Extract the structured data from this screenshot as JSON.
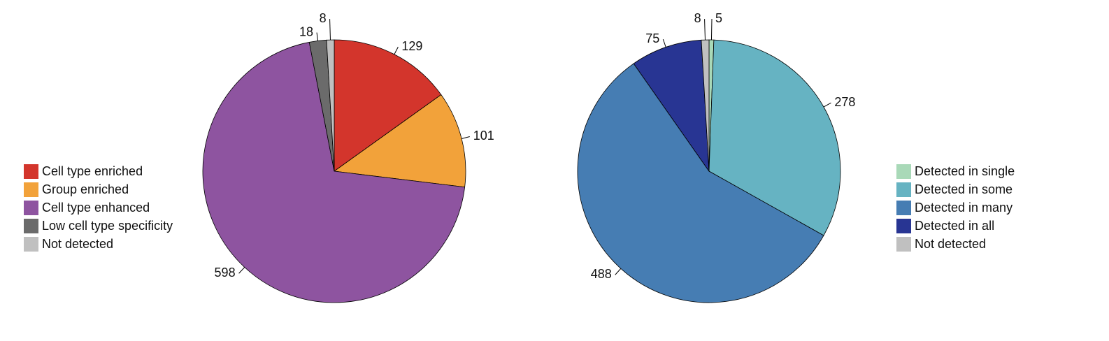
{
  "chart_data": [
    {
      "type": "pie",
      "legend": "left",
      "categories": [
        "Cell type enriched",
        "Group enriched",
        "Cell type enhanced",
        "Low cell type specificity",
        "Not detected"
      ],
      "values": [
        129,
        101,
        598,
        18,
        8
      ],
      "colors": [
        "#d3352c",
        "#f2a23a",
        "#8e54a0",
        "#6b6b6b",
        "#c0c0c0"
      ]
    },
    {
      "type": "pie",
      "legend": "right",
      "categories": [
        "Detected in single",
        "Detected in some",
        "Detected in many",
        "Detected in all",
        "Not detected"
      ],
      "values": [
        5,
        278,
        488,
        75,
        8
      ],
      "colors": [
        "#a9d9b8",
        "#66b3c2",
        "#467db3",
        "#283593",
        "#c0c0c0"
      ]
    }
  ]
}
